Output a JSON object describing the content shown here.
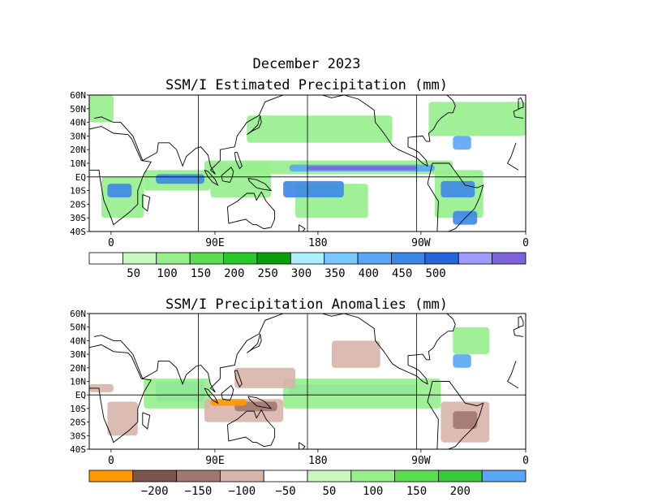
{
  "figure_title": "December 2023",
  "panels": [
    {
      "id": "estimated",
      "title": "SSM/I Estimated Precipitation (mm)",
      "lat_labels": [
        "60N",
        "50N",
        "40N",
        "30N",
        "20N",
        "10N",
        "EQ",
        "10S",
        "20S",
        "30S",
        "40S"
      ],
      "lon_labels": [
        "0",
        "90E",
        "180",
        "90W",
        "0"
      ],
      "colorbar": {
        "colors": [
          "#ffffff",
          "#c8f7c0",
          "#96ee8c",
          "#5ade50",
          "#28c828",
          "#0aa00a",
          "#aaeeff",
          "#78c8ff",
          "#5aa6f5",
          "#3c87e6",
          "#2864dc",
          "#a09bff",
          "#7d64dc"
        ],
        "labels": [
          "50",
          "100",
          "150",
          "200",
          "250",
          "300",
          "350",
          "400",
          "450",
          "500"
        ]
      },
      "features": [
        {
          "shape": "band",
          "color": "#96ee8c",
          "lon": [
            95,
            300
          ],
          "lat": [
            2,
            12
          ]
        },
        {
          "shape": "band",
          "color": "#5aa6f5",
          "lon": [
            165,
            285
          ],
          "lat": [
            4,
            9
          ]
        },
        {
          "shape": "band",
          "color": "#7d64dc",
          "lon": [
            180,
            270
          ],
          "lat": [
            5,
            8
          ]
        },
        {
          "shape": "band",
          "color": "#96ee8c",
          "lon": [
            130,
            250
          ],
          "lat": [
            25,
            45
          ]
        },
        {
          "shape": "band",
          "color": "#96ee8c",
          "lon": [
            280,
            360
          ],
          "lat": [
            30,
            55
          ]
        },
        {
          "shape": "band",
          "color": "#96ee8c",
          "lon": [
            170,
            230
          ],
          "lat": [
            -30,
            -5
          ]
        },
        {
          "shape": "band",
          "color": "#3c87e6",
          "lon": [
            160,
            210
          ],
          "lat": [
            -15,
            -3
          ]
        },
        {
          "shape": "band",
          "color": "#96ee8c",
          "lon": [
            285,
            325
          ],
          "lat": [
            -30,
            5
          ]
        },
        {
          "shape": "band",
          "color": "#3c87e6",
          "lon": [
            290,
            318
          ],
          "lat": [
            -15,
            -3
          ]
        },
        {
          "shape": "band",
          "color": "#96ee8c",
          "lon": [
            10,
            45
          ],
          "lat": [
            -30,
            0
          ]
        },
        {
          "shape": "band",
          "color": "#3c87e6",
          "lon": [
            15,
            35
          ],
          "lat": [
            -15,
            -5
          ]
        },
        {
          "shape": "band",
          "color": "#96ee8c",
          "lon": [
            45,
            100
          ],
          "lat": [
            -10,
            5
          ]
        },
        {
          "shape": "band",
          "color": "#3c87e6",
          "lon": [
            55,
            95
          ],
          "lat": [
            -5,
            2
          ]
        },
        {
          "shape": "band",
          "color": "#5aa6f5",
          "lon": [
            300,
            315
          ],
          "lat": [
            20,
            30
          ]
        },
        {
          "shape": "band",
          "color": "#96ee8c",
          "lon": [
            100,
            150
          ],
          "lat": [
            -15,
            10
          ]
        },
        {
          "shape": "band",
          "color": "#3c87e6",
          "lon": [
            300,
            320
          ],
          "lat": [
            -35,
            -25
          ]
        },
        {
          "shape": "band",
          "color": "#96ee8c",
          "lon": [
            0,
            20
          ],
          "lat": [
            40,
            60
          ]
        }
      ]
    },
    {
      "id": "anomaly",
      "title": "SSM/I Precipitation Anomalies (mm)",
      "lat_labels": [
        "60N",
        "50N",
        "40N",
        "30N",
        "20N",
        "10N",
        "EQ",
        "10S",
        "20S",
        "30S",
        "40S"
      ],
      "lon_labels": [
        "0",
        "90E",
        "180",
        "90W",
        "0"
      ],
      "colorbar": {
        "colors": [
          "#ff9900",
          "#7a574a",
          "#a0786e",
          "#d7b4aa",
          "#ffffff",
          "#c8f7c0",
          "#96ee8c",
          "#5ade50",
          "#3cc83c",
          "#5aa6f5"
        ],
        "labels": [
          "−200",
          "−150",
          "−100",
          "−50",
          "50",
          "100",
          "150",
          "200"
        ]
      },
      "features": [
        {
          "shape": "band",
          "color": "#5aa6f5",
          "lon": [
            165,
            270
          ],
          "lat": [
            0,
            8
          ]
        },
        {
          "shape": "band",
          "color": "#96ee8c",
          "lon": [
            160,
            290
          ],
          "lat": [
            -10,
            12
          ]
        },
        {
          "shape": "band",
          "color": "#5aa6f5",
          "lon": [
            55,
            95
          ],
          "lat": [
            -5,
            10
          ]
        },
        {
          "shape": "band",
          "color": "#96ee8c",
          "lon": [
            45,
            100
          ],
          "lat": [
            -10,
            12
          ]
        },
        {
          "shape": "band",
          "color": "#d7b4aa",
          "lon": [
            95,
            160
          ],
          "lat": [
            -20,
            -3
          ]
        },
        {
          "shape": "band",
          "color": "#a0786e",
          "lon": [
            120,
            155
          ],
          "lat": [
            -12,
            -5
          ]
        },
        {
          "shape": "band",
          "color": "#ff9900",
          "lon": [
            100,
            130
          ],
          "lat": [
            -8,
            -3
          ]
        },
        {
          "shape": "band",
          "color": "#d7b4aa",
          "lon": [
            120,
            170
          ],
          "lat": [
            5,
            20
          ]
        },
        {
          "shape": "band",
          "color": "#d7b4aa",
          "lon": [
            200,
            240
          ],
          "lat": [
            20,
            40
          ]
        },
        {
          "shape": "band",
          "color": "#d7b4aa",
          "lon": [
            290,
            330
          ],
          "lat": [
            -35,
            -5
          ]
        },
        {
          "shape": "band",
          "color": "#a0786e",
          "lon": [
            300,
            320
          ],
          "lat": [
            -25,
            -12
          ]
        },
        {
          "shape": "band",
          "color": "#5aa6f5",
          "lon": [
            300,
            315
          ],
          "lat": [
            20,
            30
          ]
        },
        {
          "shape": "band",
          "color": "#96ee8c",
          "lon": [
            300,
            330
          ],
          "lat": [
            30,
            50
          ]
        },
        {
          "shape": "band",
          "color": "#d7b4aa",
          "lon": [
            15,
            40
          ],
          "lat": [
            -30,
            -5
          ]
        },
        {
          "shape": "band",
          "color": "#d7b4aa",
          "lon": [
            0,
            20
          ],
          "lat": [
            2,
            8
          ]
        }
      ]
    }
  ]
}
